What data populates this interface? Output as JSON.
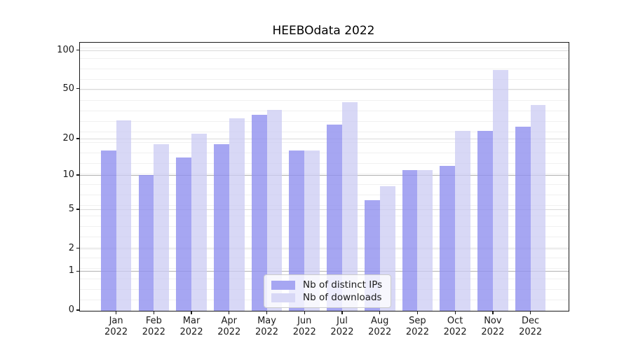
{
  "title": "HEEBOdata 2022",
  "chart_data": {
    "type": "bar",
    "title": "HEEBOdata 2022",
    "categories": [
      "Jan\n2022",
      "Feb\n2022",
      "Mar\n2022",
      "Apr\n2022",
      "May\n2022",
      "Jun\n2022",
      "Jul\n2022",
      "Aug\n2022",
      "Sep\n2022",
      "Oct\n2022",
      "Nov\n2022",
      "Dec\n2022"
    ],
    "series": [
      {
        "name": "Nb of distinct IPs",
        "color": "#a6a6f2",
        "fill": "rgba(144,144,239,0.8)",
        "values": [
          16,
          10,
          14,
          18,
          31,
          16,
          26,
          6,
          11,
          12,
          23,
          25
        ]
      },
      {
        "name": "Nb of downloads",
        "color": "#d8d8f6",
        "fill": "rgba(203,203,243,0.75)",
        "values": [
          28,
          18,
          22,
          29,
          34,
          16,
          39,
          8,
          11,
          23,
          70,
          37
        ]
      }
    ],
    "xlabel": "",
    "ylabel": "",
    "yscale": "log10(1+y)",
    "yticks": [
      0,
      1,
      2,
      5,
      10,
      20,
      50,
      100
    ],
    "ylim": [
      0,
      116
    ],
    "grid": true,
    "legend_position": "lower center"
  }
}
